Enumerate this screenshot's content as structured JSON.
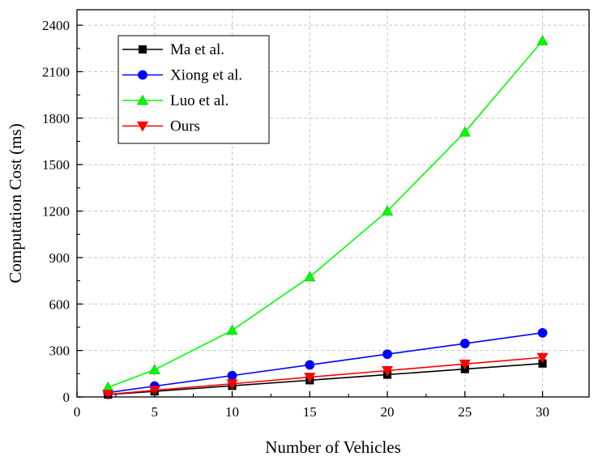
{
  "chart_data": {
    "type": "line",
    "title": "",
    "xlabel": "Number of Vehicles",
    "ylabel": "Computation Cost (ms)",
    "x": [
      2,
      5,
      10,
      15,
      20,
      25,
      30
    ],
    "xlim": [
      0,
      33
    ],
    "ylim": [
      0,
      2500
    ],
    "xticks": [
      0,
      5,
      10,
      15,
      20,
      25,
      30
    ],
    "yticks": [
      0,
      300,
      600,
      900,
      1200,
      1500,
      1800,
      2100,
      2400
    ],
    "grid": true,
    "legend_position": "top-left",
    "series": [
      {
        "name": "Ma et al.",
        "color": "#000000",
        "marker": "square",
        "values": [
          15,
          36,
          72,
          108,
          144,
          180,
          216
        ]
      },
      {
        "name": "Xiong et al.",
        "color": "#0000ff",
        "marker": "circle",
        "values": [
          28,
          70,
          138,
          207,
          276,
          345,
          414
        ]
      },
      {
        "name": "Luo et al.",
        "color": "#00ff00",
        "marker": "triangle-up",
        "values": [
          62,
          175,
          430,
          775,
          1200,
          1710,
          2300
        ]
      },
      {
        "name": "Ours",
        "color": "#ff0000",
        "marker": "triangle-down",
        "values": [
          17,
          43,
          85,
          128,
          170,
          213,
          255
        ]
      }
    ]
  }
}
